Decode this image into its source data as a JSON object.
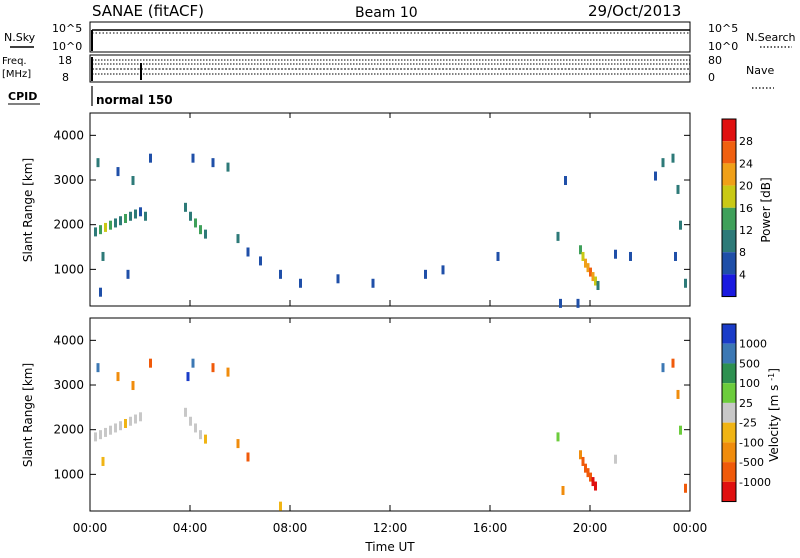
{
  "header": {
    "station": "SANAE (fitACF)",
    "beam": "Beam 10",
    "date": "29/Oct/2013"
  },
  "strips": {
    "nsky_label": "N.Sky",
    "nsky_top": "10^5",
    "nsky_bottom": "10^0",
    "nsearch_top": "10^5",
    "nsearch_bottom": "10^0",
    "nsearch_label": "N.Search",
    "freq_label": "Freq.",
    "freq_unit": "[MHz]",
    "freq_top": "18",
    "freq_bottom": "8",
    "nave_top": "80",
    "nave_bottom": "0",
    "nave_label": "Nave",
    "cpid_label": "CPID",
    "cpid_value": "normal 150"
  },
  "chart_data": [
    {
      "type": "heatmap",
      "title": "",
      "xlabel": "Time UT",
      "ylabel": "Slant Range [km]",
      "x_ticks": [
        "00:00",
        "04:00",
        "08:00",
        "12:00",
        "16:00",
        "20:00",
        "00:00"
      ],
      "xlim": [
        0,
        24
      ],
      "ylim": [
        180,
        4500
      ],
      "y_ticks": [
        1000,
        2000,
        3000,
        4000
      ],
      "colorbar_label": "Power [dB]",
      "colorbar_ticks": [
        "4",
        "8",
        "12",
        "16",
        "20",
        "24",
        "28"
      ],
      "colorbar_colors": [
        "#1a1ae0",
        "#1f4fa8",
        "#2d7a78",
        "#3fa05a",
        "#c9c915",
        "#f0a018",
        "#f06010",
        "#e01010"
      ],
      "points": [
        {
          "t": 0.2,
          "r": 1850,
          "v": 8
        },
        {
          "t": 0.4,
          "r": 1900,
          "v": 12
        },
        {
          "t": 0.6,
          "r": 1950,
          "v": 16
        },
        {
          "t": 0.8,
          "r": 2000,
          "v": 12
        },
        {
          "t": 1.0,
          "r": 2050,
          "v": 8
        },
        {
          "t": 1.2,
          "r": 2100,
          "v": 8
        },
        {
          "t": 1.4,
          "r": 2150,
          "v": 12
        },
        {
          "t": 1.6,
          "r": 2200,
          "v": 8
        },
        {
          "t": 1.8,
          "r": 2250,
          "v": 8
        },
        {
          "t": 2.0,
          "r": 2300,
          "v": 4
        },
        {
          "t": 2.2,
          "r": 2200,
          "v": 8
        },
        {
          "t": 0.3,
          "r": 3400,
          "v": 8
        },
        {
          "t": 1.1,
          "r": 3200,
          "v": 4
        },
        {
          "t": 1.7,
          "r": 3000,
          "v": 8
        },
        {
          "t": 2.4,
          "r": 3500,
          "v": 4
        },
        {
          "t": 0.5,
          "r": 1300,
          "v": 8
        },
        {
          "t": 1.5,
          "r": 900,
          "v": 4
        },
        {
          "t": 0.4,
          "r": 500,
          "v": 4
        },
        {
          "t": 3.8,
          "r": 2400,
          "v": 8
        },
        {
          "t": 4.0,
          "r": 2200,
          "v": 8
        },
        {
          "t": 4.2,
          "r": 2050,
          "v": 12
        },
        {
          "t": 4.4,
          "r": 1900,
          "v": 12
        },
        {
          "t": 4.6,
          "r": 1800,
          "v": 8
        },
        {
          "t": 4.1,
          "r": 3500,
          "v": 4
        },
        {
          "t": 4.9,
          "r": 3400,
          "v": 4
        },
        {
          "t": 5.5,
          "r": 3300,
          "v": 8
        },
        {
          "t": 5.9,
          "r": 1700,
          "v": 8
        },
        {
          "t": 6.3,
          "r": 1400,
          "v": 4
        },
        {
          "t": 6.8,
          "r": 1200,
          "v": 4
        },
        {
          "t": 7.6,
          "r": 900,
          "v": 4
        },
        {
          "t": 8.4,
          "r": 700,
          "v": 4
        },
        {
          "t": 9.9,
          "r": 800,
          "v": 4
        },
        {
          "t": 11.3,
          "r": 700,
          "v": 4
        },
        {
          "t": 13.4,
          "r": 900,
          "v": 4
        },
        {
          "t": 14.1,
          "r": 1000,
          "v": 4
        },
        {
          "t": 16.3,
          "r": 1300,
          "v": 4
        },
        {
          "t": 18.7,
          "r": 1750,
          "v": 8
        },
        {
          "t": 19.6,
          "r": 1450,
          "v": 12
        },
        {
          "t": 19.7,
          "r": 1300,
          "v": 16
        },
        {
          "t": 19.8,
          "r": 1150,
          "v": 20
        },
        {
          "t": 19.9,
          "r": 1050,
          "v": 20
        },
        {
          "t": 20.0,
          "r": 950,
          "v": 24
        },
        {
          "t": 20.1,
          "r": 850,
          "v": 20
        },
        {
          "t": 20.2,
          "r": 750,
          "v": 16
        },
        {
          "t": 20.3,
          "r": 650,
          "v": 8
        },
        {
          "t": 21.0,
          "r": 1350,
          "v": 4
        },
        {
          "t": 21.6,
          "r": 1300,
          "v": 4
        },
        {
          "t": 19.0,
          "r": 3000,
          "v": 4
        },
        {
          "t": 22.6,
          "r": 3100,
          "v": 4
        },
        {
          "t": 22.9,
          "r": 3400,
          "v": 8
        },
        {
          "t": 23.3,
          "r": 3500,
          "v": 8
        },
        {
          "t": 23.5,
          "r": 2800,
          "v": 8
        },
        {
          "t": 23.6,
          "r": 2000,
          "v": 8
        },
        {
          "t": 23.4,
          "r": 1300,
          "v": 4
        },
        {
          "t": 23.8,
          "r": 700,
          "v": 8
        },
        {
          "t": 18.8,
          "r": 250,
          "v": 4
        },
        {
          "t": 19.5,
          "r": 250,
          "v": 4
        }
      ]
    },
    {
      "type": "heatmap",
      "title": "",
      "xlabel": "Time UT",
      "ylabel": "Slant Range [km]",
      "x_ticks": [
        "00:00",
        "04:00",
        "08:00",
        "12:00",
        "16:00",
        "20:00",
        "00:00"
      ],
      "xlim": [
        0,
        24
      ],
      "ylim": [
        180,
        4500
      ],
      "y_ticks": [
        1000,
        2000,
        3000,
        4000
      ],
      "colorbar_label": "Velocity [m s^-1]",
      "colorbar_ticks": [
        "1000",
        "500",
        "100",
        "25",
        "-25",
        "-100",
        "-500",
        "-1000"
      ],
      "colorbar_colors": [
        "#1a3cc8",
        "#3c78b4",
        "#2e9050",
        "#6ccc3c",
        "#c8c8c8",
        "#f0b414",
        "#f08c0c",
        "#f05a0a",
        "#e01010"
      ],
      "points": [
        {
          "t": 0.2,
          "r": 1850,
          "v": 0
        },
        {
          "t": 0.4,
          "r": 1900,
          "v": 0
        },
        {
          "t": 0.6,
          "r": 1950,
          "v": 0
        },
        {
          "t": 0.8,
          "r": 2000,
          "v": 10
        },
        {
          "t": 1.0,
          "r": 2050,
          "v": 0
        },
        {
          "t": 1.2,
          "r": 2100,
          "v": 0
        },
        {
          "t": 1.4,
          "r": 2150,
          "v": -30
        },
        {
          "t": 1.6,
          "r": 2200,
          "v": 0
        },
        {
          "t": 1.8,
          "r": 2250,
          "v": 0
        },
        {
          "t": 2.0,
          "r": 2300,
          "v": 0
        },
        {
          "t": 0.3,
          "r": 3400,
          "v": 600
        },
        {
          "t": 1.1,
          "r": 3200,
          "v": -200
        },
        {
          "t": 1.7,
          "r": 3000,
          "v": -150
        },
        {
          "t": 2.4,
          "r": 3500,
          "v": -600
        },
        {
          "t": 0.5,
          "r": 1300,
          "v": -50
        },
        {
          "t": 3.8,
          "r": 2400,
          "v": 0
        },
        {
          "t": 4.0,
          "r": 2200,
          "v": 0
        },
        {
          "t": 4.2,
          "r": 2050,
          "v": 0
        },
        {
          "t": 4.4,
          "r": 1900,
          "v": 0
        },
        {
          "t": 4.6,
          "r": 1800,
          "v": -50
        },
        {
          "t": 4.1,
          "r": 3500,
          "v": 700
        },
        {
          "t": 4.9,
          "r": 3400,
          "v": -700
        },
        {
          "t": 5.5,
          "r": 3300,
          "v": -200
        },
        {
          "t": 5.9,
          "r": 1700,
          "v": -150
        },
        {
          "t": 6.3,
          "r": 1400,
          "v": -600
        },
        {
          "t": 3.9,
          "r": 3200,
          "v": 1200
        },
        {
          "t": 7.6,
          "r": 300,
          "v": -100
        },
        {
          "t": 18.7,
          "r": 1850,
          "v": 60
        },
        {
          "t": 19.6,
          "r": 1450,
          "v": -300
        },
        {
          "t": 19.7,
          "r": 1300,
          "v": -600
        },
        {
          "t": 19.8,
          "r": 1150,
          "v": -600
        },
        {
          "t": 19.9,
          "r": 1050,
          "v": -700
        },
        {
          "t": 20.0,
          "r": 950,
          "v": -700
        },
        {
          "t": 20.1,
          "r": 850,
          "v": -1200
        },
        {
          "t": 20.2,
          "r": 750,
          "v": -1200
        },
        {
          "t": 18.9,
          "r": 650,
          "v": -150
        },
        {
          "t": 21.0,
          "r": 1350,
          "v": 0
        },
        {
          "t": 22.9,
          "r": 3400,
          "v": 700
        },
        {
          "t": 23.3,
          "r": 3500,
          "v": -700
        },
        {
          "t": 23.5,
          "r": 2800,
          "v": -200
        },
        {
          "t": 23.6,
          "r": 2000,
          "v": 60
        },
        {
          "t": 23.8,
          "r": 700,
          "v": -600
        }
      ]
    }
  ]
}
